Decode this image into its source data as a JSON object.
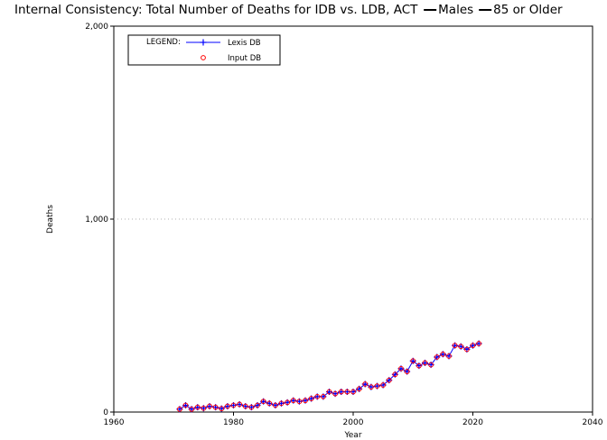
{
  "chart_data": {
    "type": "line",
    "title": "Internal Consistency: Total Number of Deaths for IDB vs. LDB, ACT",
    "title_legend": [
      {
        "label": "Males",
        "color": "#000000"
      },
      {
        "label": "85 or Older",
        "color": "#000000"
      }
    ],
    "xlabel": "Year",
    "ylabel": "Deaths",
    "xlim": [
      1960,
      2040
    ],
    "ylim": [
      0,
      2000
    ],
    "xticks": [
      1960,
      1980,
      2000,
      2020,
      2040
    ],
    "xtick_labels": [
      "1960",
      "1980",
      "2000",
      "2020",
      "2040"
    ],
    "yticks": [
      0,
      1000,
      2000
    ],
    "ytick_labels": [
      "0",
      "1,000",
      "2,000"
    ],
    "grid": true,
    "legend_placement": "top-left",
    "legend_title": "LEGEND:",
    "series": [
      {
        "name": "Lexis DB",
        "color": "#0000ff",
        "marker": "plus",
        "line": true,
        "x": [
          1971,
          1972,
          1973,
          1974,
          1975,
          1976,
          1977,
          1978,
          1979,
          1980,
          1981,
          1982,
          1983,
          1984,
          1985,
          1986,
          1987,
          1988,
          1989,
          1990,
          1991,
          1992,
          1993,
          1994,
          1995,
          1996,
          1997,
          1998,
          1999,
          2000,
          2001,
          2002,
          2003,
          2004,
          2005,
          2006,
          2007,
          2008,
          2009,
          2010,
          2011,
          2012,
          2013,
          2014,
          2015,
          2016,
          2017,
          2018,
          2019,
          2020,
          2021
        ],
        "values": [
          15,
          35,
          15,
          25,
          20,
          30,
          25,
          18,
          30,
          35,
          40,
          30,
          25,
          35,
          55,
          45,
          35,
          45,
          50,
          60,
          55,
          60,
          70,
          80,
          80,
          105,
          95,
          105,
          105,
          105,
          120,
          145,
          130,
          135,
          140,
          165,
          195,
          225,
          210,
          265,
          240,
          255,
          245,
          285,
          300,
          290,
          345,
          340,
          325,
          345,
          355
        ]
      },
      {
        "name": "Input DB",
        "color": "#ff0000",
        "marker": "circle",
        "line": false,
        "x": [
          1971,
          1972,
          1973,
          1974,
          1975,
          1976,
          1977,
          1978,
          1979,
          1980,
          1981,
          1982,
          1983,
          1984,
          1985,
          1986,
          1987,
          1988,
          1989,
          1990,
          1991,
          1992,
          1993,
          1994,
          1995,
          1996,
          1997,
          1998,
          1999,
          2000,
          2001,
          2002,
          2003,
          2004,
          2005,
          2006,
          2007,
          2008,
          2009,
          2010,
          2011,
          2012,
          2013,
          2014,
          2015,
          2016,
          2017,
          2018,
          2019,
          2020,
          2021
        ],
        "values": [
          15,
          35,
          15,
          25,
          20,
          30,
          25,
          18,
          30,
          35,
          40,
          30,
          25,
          35,
          55,
          45,
          35,
          45,
          50,
          60,
          55,
          60,
          70,
          80,
          80,
          105,
          95,
          105,
          105,
          105,
          120,
          145,
          130,
          135,
          140,
          165,
          195,
          225,
          210,
          265,
          240,
          255,
          245,
          285,
          300,
          290,
          345,
          340,
          325,
          345,
          355
        ]
      }
    ]
  }
}
